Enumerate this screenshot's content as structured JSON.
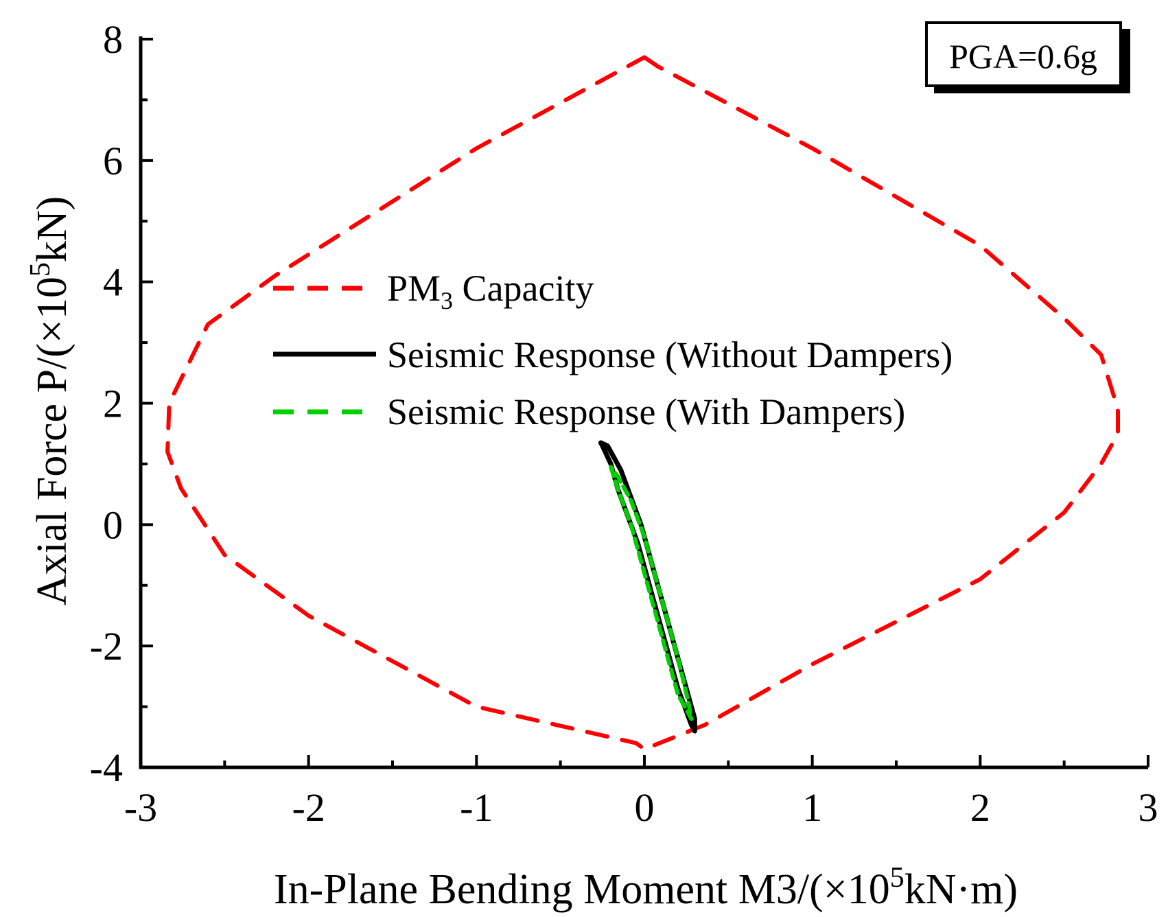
{
  "chart_data": {
    "type": "line",
    "annotation": "PGA=0.6g",
    "xlabel": {
      "prefix": "In-Plane Bending Moment M3/(×10",
      "sup": "5",
      "suffix": "kN·m)"
    },
    "ylabel": {
      "prefix": "Axial Force P/(×10",
      "sup": "5",
      "suffix": "kN)"
    },
    "xlim": [
      -3,
      3
    ],
    "ylim": [
      -4,
      8
    ],
    "xticks": [
      -3,
      -2,
      -1,
      0,
      1,
      2,
      3
    ],
    "yticks": [
      -4,
      -2,
      0,
      2,
      4,
      6,
      8
    ],
    "xtick_labels": [
      "-3",
      "-2",
      "-1",
      "0",
      "1",
      "2",
      "3"
    ],
    "ytick_labels": [
      "-4",
      "-2",
      "0",
      "2",
      "4",
      "6",
      "8"
    ],
    "grid": false,
    "legend_position": "center",
    "series": [
      {
        "name": "PM",
        "name_sub": "3",
        "name_rest": " Capacity",
        "color": "#ff0000",
        "style": "dashed",
        "x": [
          0.0,
          0.08,
          1.0,
          2.0,
          2.5,
          2.72,
          2.82,
          2.82,
          2.72,
          2.5,
          2.0,
          1.0,
          0.36,
          0.0,
          -0.05,
          -1.0,
          -2.0,
          -2.5,
          -2.76,
          -2.84,
          -2.83,
          -2.6,
          -2.2,
          -1.0,
          0.0
        ],
        "y": [
          7.7,
          7.55,
          6.2,
          4.6,
          3.4,
          2.8,
          1.9,
          1.5,
          1.0,
          0.2,
          -0.9,
          -2.3,
          -3.3,
          -3.7,
          -3.6,
          -3.0,
          -1.5,
          -0.5,
          0.6,
          1.2,
          2.0,
          3.3,
          4.1,
          6.2,
          7.7
        ]
      },
      {
        "name": "Seismic Response (Without Dampers)",
        "color": "#000000",
        "style": "solid",
        "x": [
          -0.25,
          -0.2,
          -0.16,
          -0.12,
          -0.08,
          -0.04,
          0.0,
          0.04,
          0.08,
          0.12,
          0.16,
          0.2,
          0.24,
          0.28,
          0.3,
          0.3,
          0.26,
          0.22,
          0.18,
          0.14,
          0.1,
          0.06,
          0.02,
          -0.02,
          -0.06,
          -0.1,
          -0.14,
          -0.18,
          -0.22,
          -0.26,
          -0.25
        ],
        "y": [
          1.3,
          1.0,
          0.6,
          0.3,
          0.0,
          -0.3,
          -0.7,
          -1.1,
          -1.5,
          -1.9,
          -2.3,
          -2.7,
          -3.0,
          -3.3,
          -3.4,
          -3.2,
          -2.8,
          -2.4,
          -2.0,
          -1.6,
          -1.2,
          -0.8,
          -0.4,
          0.0,
          0.3,
          0.6,
          0.9,
          1.1,
          1.3,
          1.35,
          1.3
        ]
      },
      {
        "name": "Seismic Response (With Dampers)",
        "color": "#00d000",
        "style": "dashed",
        "x": [
          -0.2,
          -0.16,
          -0.12,
          -0.08,
          -0.04,
          0.0,
          0.04,
          0.08,
          0.12,
          0.16,
          0.2,
          0.24,
          0.28,
          0.26,
          0.2,
          0.16,
          0.12,
          0.08,
          0.04,
          0.0,
          -0.04,
          -0.08,
          -0.12,
          -0.16,
          -0.2
        ],
        "y": [
          0.95,
          0.6,
          0.3,
          0.0,
          -0.4,
          -0.8,
          -1.2,
          -1.6,
          -2.0,
          -2.4,
          -2.8,
          -3.0,
          -3.2,
          -2.9,
          -2.2,
          -1.8,
          -1.4,
          -1.0,
          -0.6,
          -0.2,
          0.1,
          0.4,
          0.6,
          0.8,
          0.95
        ]
      }
    ]
  }
}
